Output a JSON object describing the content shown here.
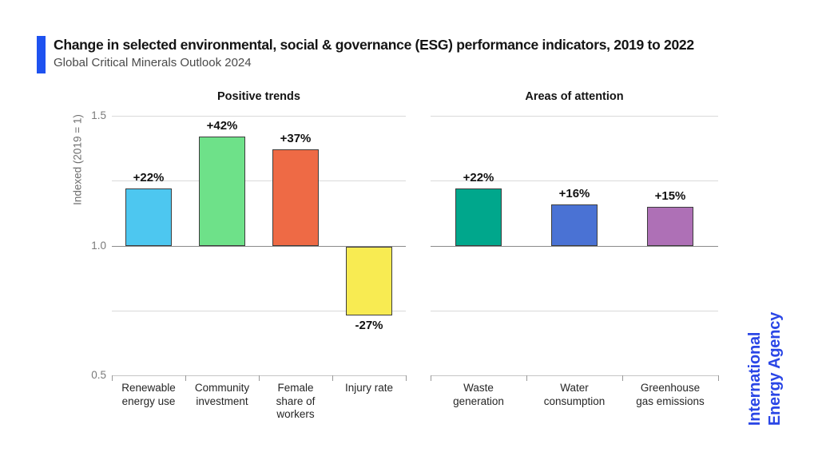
{
  "header": {
    "title": "Change in selected environmental, social & governance (ESG) performance indicators, 2019 to 2022",
    "subtitle": "Global Critical Minerals Outlook 2024",
    "accent_color": "#1e52f0"
  },
  "axis": {
    "ylabel": "Indexed (2019 = 1)",
    "ylim": [
      0.5,
      1.5
    ],
    "baseline": 1.0,
    "gridlines": [
      1.5,
      1.25,
      1.0,
      0.75,
      0.5
    ],
    "yticks": [
      {
        "value": 1.5,
        "label": "1.5"
      },
      {
        "value": 1.0,
        "label": "1.0"
      },
      {
        "value": 0.5,
        "label": "0.5"
      }
    ]
  },
  "chart_data": [
    {
      "type": "bar",
      "title": "Positive trends",
      "ylabel": "Indexed (2019 = 1)",
      "ylim": [
        0.5,
        1.5
      ],
      "baseline": 1.0,
      "grid": true,
      "show_y_ticks": true,
      "categories": [
        "Renewable\nenergy use",
        "Community\ninvestment",
        "Female\nshare of\nworkers",
        "Injury rate"
      ],
      "values": [
        1.22,
        1.42,
        1.37,
        0.73
      ],
      "labels": [
        "+22%",
        "+42%",
        "+37%",
        "-27%"
      ],
      "colors": [
        "#4dc7f0",
        "#6ee189",
        "#ee6a45",
        "#f8eb52"
      ]
    },
    {
      "type": "bar",
      "title": "Areas of attention",
      "ylabel": "",
      "ylim": [
        0.5,
        1.5
      ],
      "baseline": 1.0,
      "grid": true,
      "show_y_ticks": false,
      "categories": [
        "Waste\ngeneration",
        "Water\nconsumption",
        "Greenhouse\ngas emissions"
      ],
      "values": [
        1.22,
        1.16,
        1.15
      ],
      "labels": [
        "+22%",
        "+16%",
        "+15%"
      ],
      "colors": [
        "#00a78c",
        "#4a72d4",
        "#ae70b6"
      ]
    }
  ],
  "logo": {
    "line1": "International",
    "line2": "Energy Agency",
    "color": "#2a46e6"
  }
}
